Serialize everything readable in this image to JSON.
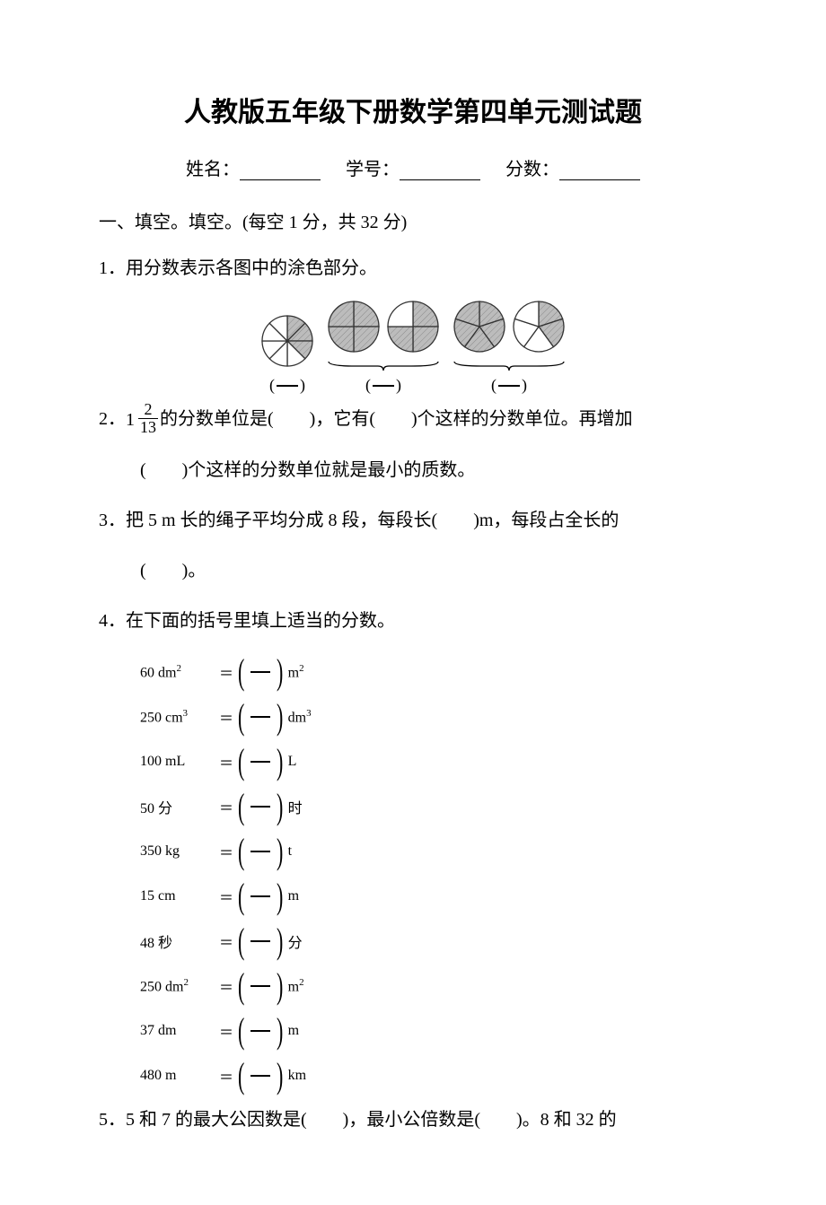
{
  "title": "人教版五年级下册数学第四单元测试题",
  "info": {
    "name_label": "姓名：",
    "id_label": "学号：",
    "score_label": "分数："
  },
  "section1_head": "一、填空。填空。(每空 1 分，共 32 分)",
  "q1": "1．用分数表示各图中的涂色部分。",
  "circles": {
    "circle_radius": 28,
    "stroke": "#333333",
    "fill_shaded": "#bcbcbc",
    "fill_blank": "#ffffff",
    "hatch_color": "#8a8a8a",
    "groups": [
      {
        "circles": [
          {
            "slices": 8,
            "shaded": [
              0,
              1,
              2
            ]
          }
        ]
      },
      {
        "circles": [
          {
            "slices": 4,
            "shaded": [
              0,
              1,
              2,
              3
            ]
          },
          {
            "slices": 4,
            "shaded": [
              0,
              1,
              2
            ]
          }
        ]
      },
      {
        "circles": [
          {
            "slices": 5,
            "shaded": [
              0,
              1,
              2,
              3,
              4
            ]
          },
          {
            "slices": 5,
            "shaded": [
              0,
              1
            ]
          }
        ]
      }
    ]
  },
  "q2": {
    "prefix": "2．",
    "mixed_whole": "1",
    "mixed_num": "2",
    "mixed_den": "13",
    "part_a": "的分数单位是(　　)，它有(　　)个这样的分数单位。再增加",
    "part_b": "(　　)个这样的分数单位就是最小的质数。"
  },
  "q3": {
    "line1": "3．把 5 m 长的绳子平均分成 8 段，每段长(　　)m，每段占全长的",
    "line2": "(　　)。"
  },
  "q4_title": "4．在下面的括号里填上适当的分数。",
  "q4_rows": [
    {
      "left": "60 dm",
      "left_sup": "2",
      "right_unit": "m",
      "right_sup": "2"
    },
    {
      "left": "250 cm",
      "left_sup": "3",
      "right_unit": "dm",
      "right_sup": "3"
    },
    {
      "left": "100 mL",
      "left_sup": "",
      "right_unit": "L",
      "right_sup": ""
    },
    {
      "left": "50 分",
      "left_sup": "",
      "right_unit": "时",
      "right_sup": ""
    },
    {
      "left": "350 kg",
      "left_sup": "",
      "right_unit": "t",
      "right_sup": ""
    },
    {
      "left": "15 cm",
      "left_sup": "",
      "right_unit": "m",
      "right_sup": ""
    },
    {
      "left": "48 秒",
      "left_sup": "",
      "right_unit": "分",
      "right_sup": ""
    },
    {
      "left": "250 dm",
      "left_sup": "2",
      "right_unit": "m",
      "right_sup": "2"
    },
    {
      "left": "37 dm",
      "left_sup": "",
      "right_unit": "m",
      "right_sup": ""
    },
    {
      "left": "480 m",
      "left_sup": "",
      "right_unit": "km",
      "right_sup": ""
    }
  ],
  "q5": "5．5 和 7 的最大公因数是(　　)，最小公倍数是(　　)。8 和 32 的"
}
